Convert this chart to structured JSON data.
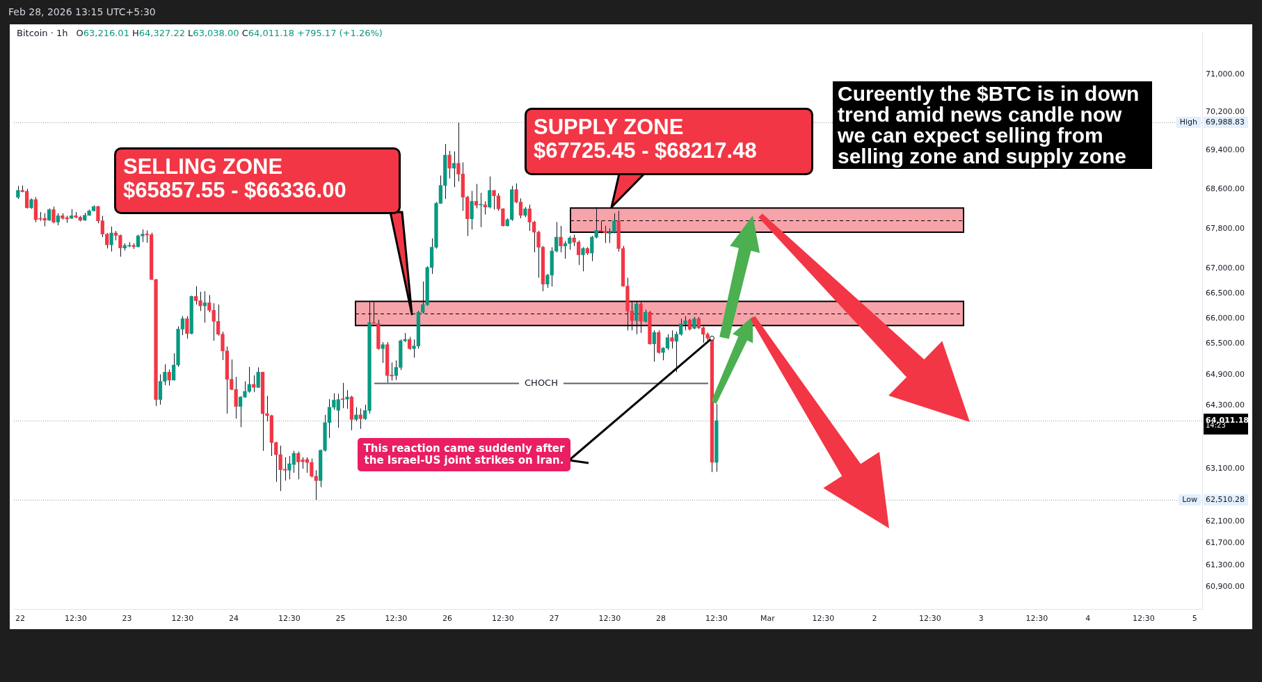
{
  "chart_data": {
    "type": "candlestick",
    "title": "Bitcoin · 1h",
    "subtitle": "O63,216.01 H64,327.22 L63,038.00 C64,011.18 +795.17 (+1.26%)",
    "log": true,
    "x": [
      "2026-02-21T23:30",
      "2026-02-22T00:30",
      "2026-02-22T01:30",
      "2026-02-22T02:30",
      "2026-02-22T03:30",
      "2026-02-22T04:30",
      "2026-02-22T05:30",
      "2026-02-22T06:30",
      "2026-02-22T07:30",
      "2026-02-22T08:30",
      "2026-02-22T09:30",
      "2026-02-22T10:30",
      "2026-02-22T11:30",
      "2026-02-22T12:30",
      "2026-02-22T13:30",
      "2026-02-22T14:30",
      "2026-02-22T15:30",
      "2026-02-22T16:30",
      "2026-02-22T17:30",
      "2026-02-22T18:30",
      "2026-02-22T19:30",
      "2026-02-22T20:30",
      "2026-02-22T21:30",
      "2026-02-22T22:30",
      "2026-02-22T23:30",
      "2026-02-23T00:30",
      "2026-02-23T01:30",
      "2026-02-23T02:30",
      "2026-02-23T03:30",
      "2026-02-23T04:30",
      "2026-02-23T05:30",
      "2026-02-23T06:30",
      "2026-02-23T07:30",
      "2026-02-23T08:30",
      "2026-02-23T09:30",
      "2026-02-23T10:30",
      "2026-02-23T11:30",
      "2026-02-23T12:30",
      "2026-02-23T13:30",
      "2026-02-23T14:30",
      "2026-02-23T15:30",
      "2026-02-23T16:30",
      "2026-02-23T17:30",
      "2026-02-23T18:30",
      "2026-02-23T19:30",
      "2026-02-23T20:30",
      "2026-02-23T21:30",
      "2026-02-23T22:30",
      "2026-02-23T23:30",
      "2026-02-24T00:30",
      "2026-02-24T01:30",
      "2026-02-24T02:30",
      "2026-02-24T03:30",
      "2026-02-24T04:30",
      "2026-02-24T05:30",
      "2026-02-24T06:30",
      "2026-02-24T07:30",
      "2026-02-24T08:30",
      "2026-02-24T09:30",
      "2026-02-24T10:30",
      "2026-02-24T11:30",
      "2026-02-24T12:30",
      "2026-02-24T13:30",
      "2026-02-24T14:30",
      "2026-02-24T15:30",
      "2026-02-24T16:30",
      "2026-02-24T17:30",
      "2026-02-24T18:30",
      "2026-02-24T19:30",
      "2026-02-24T20:30",
      "2026-02-24T21:30",
      "2026-02-24T22:30",
      "2026-02-24T23:30",
      "2026-02-25T00:30",
      "2026-02-25T01:30",
      "2026-02-25T02:30",
      "2026-02-25T03:30",
      "2026-02-25T04:30",
      "2026-02-25T05:30",
      "2026-02-25T06:30",
      "2026-02-25T07:30",
      "2026-02-25T08:30",
      "2026-02-25T09:30",
      "2026-02-25T10:30",
      "2026-02-25T11:30",
      "2026-02-25T12:30",
      "2026-02-25T13:30",
      "2026-02-25T14:30",
      "2026-02-25T15:30",
      "2026-02-25T16:30",
      "2026-02-25T17:30",
      "2026-02-25T18:30",
      "2026-02-25T19:30",
      "2026-02-25T20:30",
      "2026-02-25T21:30",
      "2026-02-25T22:30",
      "2026-02-25T23:30",
      "2026-02-26T00:30",
      "2026-02-26T01:30",
      "2026-02-26T02:30",
      "2026-02-26T03:30",
      "2026-02-26T04:30",
      "2026-02-26T05:30",
      "2026-02-26T06:30",
      "2026-02-26T07:30",
      "2026-02-26T08:30",
      "2026-02-26T09:30",
      "2026-02-26T10:30",
      "2026-02-26T11:30",
      "2026-02-26T12:30",
      "2026-02-26T13:30",
      "2026-02-26T14:30",
      "2026-02-26T15:30",
      "2026-02-26T16:30",
      "2026-02-26T17:30",
      "2026-02-26T18:30",
      "2026-02-26T19:30",
      "2026-02-26T20:30",
      "2026-02-26T21:30",
      "2026-02-26T22:30",
      "2026-02-26T23:30",
      "2026-02-27T00:30",
      "2026-02-27T01:30",
      "2026-02-27T02:30",
      "2026-02-27T03:30",
      "2026-02-27T04:30",
      "2026-02-27T05:30",
      "2026-02-27T06:30",
      "2026-02-27T07:30",
      "2026-02-27T08:30",
      "2026-02-27T09:30",
      "2026-02-27T10:30",
      "2026-02-27T11:30",
      "2026-02-27T12:30",
      "2026-02-27T13:30",
      "2026-02-27T14:30",
      "2026-02-27T15:30",
      "2026-02-27T16:30",
      "2026-02-27T17:30",
      "2026-02-27T18:30",
      "2026-02-27T19:30",
      "2026-02-27T20:30",
      "2026-02-27T21:30",
      "2026-02-27T22:30",
      "2026-02-27T23:30",
      "2026-02-28T00:30",
      "2026-02-28T01:30",
      "2026-02-28T02:30",
      "2026-02-28T03:30",
      "2026-02-28T04:30",
      "2026-02-28T05:30",
      "2026-02-28T06:30",
      "2026-02-28T07:30",
      "2026-02-28T08:30",
      "2026-02-28T09:30",
      "2026-02-28T10:30",
      "2026-02-28T11:30",
      "2026-02-28T12:30"
    ],
    "ohlc": [
      [
        68440,
        68670,
        68405,
        68578
      ],
      [
        68578,
        68680,
        68540,
        68553
      ],
      [
        68560,
        68610,
        68210,
        68221
      ],
      [
        68221,
        68415,
        68200,
        68390
      ],
      [
        68390,
        68440,
        67930,
        67982
      ],
      [
        68007,
        68135,
        67955,
        67990
      ],
      [
        68007,
        68110,
        67844,
        67970
      ],
      [
        67970,
        68210,
        67955,
        68185
      ],
      [
        68185,
        68245,
        67905,
        67930
      ],
      [
        67930,
        68110,
        67865,
        68058
      ],
      [
        68058,
        68110,
        67980,
        68007
      ],
      [
        68020,
        68060,
        67915,
        67995
      ],
      [
        68007,
        68195,
        67995,
        68058
      ],
      [
        68058,
        68135,
        68007,
        68030
      ],
      [
        68030,
        68058,
        67945,
        67965
      ],
      [
        67970,
        68120,
        67955,
        68070
      ],
      [
        68070,
        68185,
        68058,
        68160
      ],
      [
        68160,
        68270,
        68150,
        68247
      ],
      [
        68247,
        68262,
        67905,
        67956
      ],
      [
        67956,
        68058,
        67625,
        67686
      ],
      [
        67686,
        67710,
        67395,
        67470
      ],
      [
        67470,
        67840,
        67335,
        67710
      ],
      [
        67710,
        67750,
        67560,
        67660
      ],
      [
        67660,
        67675,
        67230,
        67405
      ],
      [
        67405,
        67500,
        67355,
        67455
      ],
      [
        67445,
        67525,
        67420,
        67450
      ],
      [
        67455,
        67500,
        67385,
        67430
      ],
      [
        67430,
        67675,
        67420,
        67650
      ],
      [
        67650,
        67780,
        67525,
        67686
      ],
      [
        67690,
        67760,
        67510,
        67670
      ],
      [
        67675,
        67715,
        66758,
        66773
      ],
      [
        66773,
        66783,
        64290,
        64415
      ],
      [
        64415,
        64905,
        64317,
        64768
      ],
      [
        64768,
        65100,
        64694,
        64947
      ],
      [
        64947,
        64998,
        64684,
        64792
      ],
      [
        64792,
        65314,
        64782,
        65085
      ],
      [
        65085,
        65840,
        65050,
        65788
      ],
      [
        65788,
        66044,
        65671,
        65993
      ],
      [
        65993,
        66044,
        65600,
        65702
      ],
      [
        65702,
        66450,
        65686,
        66436
      ],
      [
        66436,
        66640,
        66273,
        66350
      ],
      [
        66350,
        66528,
        66146,
        66248
      ],
      [
        66248,
        66538,
        65916,
        66309
      ],
      [
        66309,
        66462,
        66120,
        66160
      ],
      [
        66160,
        66300,
        65559,
        65941
      ],
      [
        65941,
        66273,
        65661,
        65687
      ],
      [
        65687,
        65737,
        65182,
        65360
      ],
      [
        65360,
        65447,
        64145,
        64807
      ],
      [
        64807,
        65192,
        64596,
        64611
      ],
      [
        64611,
        64856,
        64048,
        64283
      ],
      [
        64283,
        64478,
        63886,
        64464
      ],
      [
        64464,
        64768,
        64449,
        64572
      ],
      [
        64572,
        65049,
        64547,
        64709
      ],
      [
        64709,
        64885,
        64562,
        64650
      ],
      [
        64650,
        65039,
        64640,
        64947
      ],
      [
        64947,
        64947,
        63434,
        64145
      ],
      [
        64145,
        64488,
        63998,
        64106
      ],
      [
        64106,
        64120,
        63336,
        63592
      ],
      [
        63592,
        63606,
        62846,
        63361
      ],
      [
        63361,
        63532,
        62675,
        63077
      ],
      [
        63086,
        63312,
        62871,
        63067
      ],
      [
        63067,
        63336,
        62895,
        63189
      ],
      [
        63175,
        63434,
        63018,
        63386
      ],
      [
        63386,
        63419,
        62895,
        63223
      ],
      [
        63263,
        63312,
        63096,
        63228
      ],
      [
        63272,
        63312,
        63018,
        63214
      ],
      [
        63214,
        63287,
        62930,
        62954
      ],
      [
        62954,
        63067,
        62510.28,
        62871
      ],
      [
        62871,
        63458,
        62749,
        63444
      ],
      [
        63444,
        64120,
        63419,
        63973
      ],
      [
        63973,
        64424,
        63679,
        64267
      ],
      [
        64267,
        64537,
        64218,
        64405
      ],
      [
        64208,
        64527,
        63875,
        64415
      ],
      [
        64430,
        64738,
        64248,
        64415
      ],
      [
        64424,
        64596,
        64238,
        64464
      ],
      [
        64464,
        64488,
        63826,
        64033
      ],
      [
        64033,
        64267,
        63998,
        64120
      ],
      [
        64120,
        64243,
        63851,
        64048
      ],
      [
        64048,
        64317,
        64023,
        64204
      ],
      [
        64204,
        66324,
        64145,
        65916
      ],
      [
        65916,
        66324,
        65890,
        65900
      ],
      [
        65900,
        65972,
        65380,
        65406
      ],
      [
        65406,
        65533,
        65125,
        65483
      ],
      [
        65483,
        65533,
        64743,
        64880
      ],
      [
        64890,
        65134,
        64782,
        64870
      ],
      [
        64880,
        65175,
        64792,
        65039
      ],
      [
        65039,
        65585,
        64988,
        65559
      ],
      [
        65559,
        65712,
        65533,
        65585
      ],
      [
        65585,
        65636,
        65380,
        65406
      ],
      [
        65406,
        65585,
        65228,
        65457
      ],
      [
        65457,
        66146,
        65406,
        66120
      ],
      [
        66120,
        66732,
        66095,
        66273
      ],
      [
        66273,
        67038,
        66248,
        67013
      ],
      [
        67013,
        67600,
        66885,
        67421
      ],
      [
        67421,
        68339,
        67395,
        68313
      ],
      [
        68313,
        68884,
        68303,
        68680
      ],
      [
        68680,
        69537,
        68405,
        69308
      ],
      [
        69308,
        69394,
        68823,
        69037
      ],
      [
        69037,
        69384,
        68645,
        69139
      ],
      [
        69139,
        69988.83,
        68762,
        68915
      ],
      [
        68915,
        69155,
        68160,
        68440
      ],
      [
        68440,
        68466,
        67650,
        67997
      ],
      [
        67997,
        68568,
        67778,
        68354
      ],
      [
        68354,
        68711,
        68211,
        68272
      ],
      [
        68280,
        68527,
        67829,
        68285
      ],
      [
        68282,
        68354,
        68084,
        68237
      ],
      [
        68237,
        68864,
        68211,
        68578
      ],
      [
        68578,
        68578,
        68186,
        68466
      ],
      [
        68466,
        68517,
        68160,
        68201
      ],
      [
        68201,
        68211,
        67844,
        67854
      ],
      [
        67854,
        68007,
        67844,
        67982
      ],
      [
        67982,
        68670,
        67956,
        68594
      ],
      [
        68594,
        68721,
        68313,
        68339
      ],
      [
        68339,
        68415,
        68007,
        68068
      ],
      [
        68068,
        68237,
        68033,
        68201
      ],
      [
        68201,
        68287,
        67752,
        67931
      ],
      [
        67931,
        67956,
        67318,
        67726
      ],
      [
        67726,
        67752,
        66808,
        67421
      ],
      [
        67421,
        67446,
        66538,
        66681
      ],
      [
        66681,
        66885,
        66605,
        66860
      ],
      [
        66860,
        67421,
        66630,
        67344
      ],
      [
        67344,
        67931,
        67319,
        67625
      ],
      [
        67625,
        67854,
        67319,
        67446
      ],
      [
        67446,
        67548,
        67191,
        67497
      ],
      [
        67497,
        67650,
        67370,
        67609
      ],
      [
        67609,
        67676,
        67446,
        67523
      ],
      [
        67523,
        67558,
        67064,
        67268
      ],
      [
        67268,
        67421,
        66936,
        67395
      ],
      [
        67395,
        67421,
        67268,
        67303
      ],
      [
        67303,
        67650,
        67140,
        67625
      ],
      [
        67625,
        68237,
        67599,
        67762
      ],
      [
        67762,
        67956,
        67701,
        67742
      ],
      [
        67742,
        67854,
        67507,
        67711
      ],
      [
        67701,
        67803,
        67507,
        67726
      ],
      [
        67726,
        68109,
        67701,
        67956
      ],
      [
        67956,
        68160,
        67334,
        67395
      ],
      [
        67395,
        67446,
        66630,
        66640
      ],
      [
        66640,
        66808,
        65763,
        66146
      ],
      [
        66146,
        66324,
        65763,
        65957
      ],
      [
        65957,
        66334,
        65687,
        66283
      ],
      [
        66283,
        66324,
        65712,
        65941
      ],
      [
        65941,
        66171,
        65916,
        66120
      ],
      [
        66120,
        66146,
        65483,
        65498
      ],
      [
        65498,
        65763,
        65151,
        65722
      ],
      [
        65722,
        65763,
        65304,
        65330
      ],
      [
        65330,
        65432,
        65177,
        65416
      ],
      [
        65416,
        65687,
        65380,
        65620
      ],
      [
        65620,
        65763,
        65406,
        65549
      ],
      [
        65549,
        65738,
        64947,
        65687
      ],
      [
        65687,
        65993,
        65661,
        65891
      ],
      [
        65891,
        66044,
        65763,
        65952
      ],
      [
        65967,
        65993,
        65763,
        65788
      ],
      [
        65804,
        66028,
        65788,
        65993
      ],
      [
        65993,
        66028,
        65788,
        65814
      ],
      [
        65814,
        65840,
        65518,
        65687
      ],
      [
        65687,
        65722,
        65534,
        65610
      ],
      [
        65610,
        65636,
        63030,
        63216.01
      ],
      [
        63216.01,
        64327.22,
        63038.0,
        64011.18
      ]
    ],
    "colors": [
      "#089981",
      "#f23645",
      "#f23645",
      "#089981",
      "#f23645",
      "#f23645",
      "#f23645",
      "#089981",
      "#f23645",
      "#089981",
      "#f23645",
      "#f23645",
      "#089981",
      "#f23645",
      "#f23645",
      "#089981",
      "#089981",
      "#089981",
      "#f23645",
      "#f23645",
      "#f23645",
      "#089981",
      "#f23645",
      "#f23645",
      "#089981",
      "#089981",
      "#f23645",
      "#089981",
      "#089981",
      "#f23645",
      "#f23645",
      "#f23645",
      "#089981",
      "#089981",
      "#f23645",
      "#089981",
      "#089981",
      "#089981",
      "#f23645",
      "#089981",
      "#f23645",
      "#f23645",
      "#089981",
      "#f23645",
      "#f23645",
      "#f23645",
      "#f23645",
      "#f23645",
      "#f23645",
      "#f23645",
      "#089981",
      "#089981",
      "#089981",
      "#f23645",
      "#089981",
      "#f23645",
      "#f23645",
      "#f23645",
      "#f23645",
      "#f23645",
      "#f23645",
      "#089981",
      "#089981",
      "#f23645",
      "#f23645",
      "#f23645",
      "#f23645",
      "#f23645",
      "#089981",
      "#089981",
      "#089981",
      "#089981",
      "#089981",
      "#f23645",
      "#089981",
      "#f23645",
      "#089981",
      "#f23645",
      "#089981",
      "#089981",
      "#f23645",
      "#f23645",
      "#089981",
      "#f23645",
      "#f23645",
      "#089981",
      "#089981",
      "#089981",
      "#f23645",
      "#089981",
      "#089981",
      "#089981",
      "#089981",
      "#089981",
      "#089981",
      "#089981",
      "#089981",
      "#f23645",
      "#089981",
      "#f23645",
      "#f23645",
      "#f23645",
      "#089981",
      "#f23645",
      "#089981",
      "#f23645",
      "#089981",
      "#f23645",
      "#f23645",
      "#f23645",
      "#089981",
      "#089981",
      "#f23645",
      "#f23645",
      "#089981",
      "#f23645",
      "#f23645",
      "#f23645",
      "#f23645",
      "#089981",
      "#089981",
      "#089981",
      "#f23645",
      "#089981",
      "#089981",
      "#f23645",
      "#f23645",
      "#089981",
      "#f23645",
      "#089981",
      "#089981",
      "#f23645",
      "#f23645",
      "#089981",
      "#089981",
      "#f23645",
      "#f23645",
      "#f23645",
      "#f23645",
      "#089981",
      "#f23645",
      "#089981",
      "#f23645",
      "#089981",
      "#f23645",
      "#089981",
      "#089981",
      "#f23645",
      "#089981",
      "#089981",
      "#089981",
      "#f23645",
      "#089981",
      "#f23645",
      "#f23645",
      "#f23645",
      "#f23645",
      "#089981"
    ],
    "xlim": [
      "2026-02-21T22:36",
      "2026-03-05T01:40"
    ],
    "xticks": [
      {
        "value": "2026-02-22T00:00",
        "label": "22"
      },
      {
        "value": "2026-02-22T12:30",
        "label": "12:30"
      },
      {
        "value": "2026-02-23T00:00",
        "label": "23"
      },
      {
        "value": "2026-02-23T12:30",
        "label": "12:30"
      },
      {
        "value": "2026-02-24T00:00",
        "label": "24"
      },
      {
        "value": "2026-02-24T12:30",
        "label": "12:30"
      },
      {
        "value": "2026-02-25T00:00",
        "label": "25"
      },
      {
        "value": "2026-02-25T12:30",
        "label": "12:30"
      },
      {
        "value": "2026-02-26T00:00",
        "label": "26"
      },
      {
        "value": "2026-02-26T12:30",
        "label": "12:30"
      },
      {
        "value": "2026-02-27T00:00",
        "label": "27"
      },
      {
        "value": "2026-02-27T12:30",
        "label": "12:30"
      },
      {
        "value": "2026-02-28T00:00",
        "label": "28"
      },
      {
        "value": "2026-02-28T12:30",
        "label": "12:30"
      },
      {
        "value": "2026-03-01T00:00",
        "label": "Mar"
      },
      {
        "value": "2026-03-01T12:30",
        "label": "12:30"
      },
      {
        "value": "2026-03-02T00:00",
        "label": "2"
      },
      {
        "value": "2026-03-02T12:30",
        "label": "12:30"
      },
      {
        "value": "2026-03-03T00:00",
        "label": "3"
      },
      {
        "value": "2026-03-03T12:30",
        "label": "12:30"
      },
      {
        "value": "2026-03-04T00:00",
        "label": "4"
      },
      {
        "value": "2026-03-04T12:30",
        "label": "12:30"
      },
      {
        "value": "2026-03-05T00:00",
        "label": "5"
      }
    ],
    "ylim": [
      60500,
      71900
    ],
    "yticks": [
      {
        "value": 60900,
        "label": "60,900.00"
      },
      {
        "value": 61300,
        "label": "61,300.00"
      },
      {
        "value": 61700,
        "label": "61,700.00"
      },
      {
        "value": 62100,
        "label": "62,100.00"
      },
      {
        "value": 62510.28,
        "label": "62,510.28"
      },
      {
        "value": 63100,
        "label": "63,100.00"
      },
      {
        "value": 64011.18,
        "label": "64,011.18"
      },
      {
        "value": 64300,
        "label": "64,300.00"
      },
      {
        "value": 64900,
        "label": "64,900.00"
      },
      {
        "value": 65500,
        "label": "65,500.00"
      },
      {
        "value": 66000,
        "label": "66,000.00"
      },
      {
        "value": 66500,
        "label": "66,500.00"
      },
      {
        "value": 67000,
        "label": "67,000.00"
      },
      {
        "value": 67800,
        "label": "67,800.00"
      },
      {
        "value": 68600,
        "label": "68,600.00"
      },
      {
        "value": 69400,
        "label": "69,400.00"
      },
      {
        "value": 69988.83,
        "label": "69,988.83"
      },
      {
        "value": 70200,
        "label": "70,200.00"
      },
      {
        "value": 71000,
        "label": "71,000.00"
      }
    ],
    "bands": [
      {
        "axis": "y",
        "from": 65857.55,
        "to": 66336.0,
        "color": "#f7a3aa"
      },
      {
        "axis": "y",
        "from": 67725.45,
        "to": 68217.48,
        "color": "#f7a3aa"
      }
    ],
    "ref_lines": [
      {
        "axis": "y",
        "value": 69988.83,
        "label": "High",
        "color": "#9598a1",
        "line_style": "dotted"
      },
      {
        "axis": "y",
        "value": 62510.28,
        "label": "Low",
        "color": "#9598a1",
        "line_style": "dotted"
      },
      {
        "axis": "y",
        "value": 64011.18,
        "color": "#9598a1",
        "line_style": "dotted"
      },
      {
        "axis": "y",
        "value": 64733,
        "label": "CHOCH",
        "color": "#5d606b",
        "line_style": "solid"
      },
      {
        "axis": "y",
        "value": 66096.78,
        "color": "#000000",
        "line_style": "dashed"
      },
      {
        "axis": "y",
        "value": 67971.47,
        "color": "#000000",
        "line_style": "dashed"
      }
    ],
    "annotations": [
      "Feb 28, 2026 13:15 UTC+5:30",
      "Cureently the $BTC is in down trend amid news candle now we can expect selling from selling zone and supply zone",
      "SELLING ZONE\n$65857.55 - $66336.00",
      "SUPPLY ZONE\n$67725.45 - $68217.48",
      {
        "text": "This reaction came suddenly after the Israel-US joint strikes on Iran.",
        "x": "2026-02-28T11:30",
        "y": 65610
      },
      "14:23"
    ]
  }
}
